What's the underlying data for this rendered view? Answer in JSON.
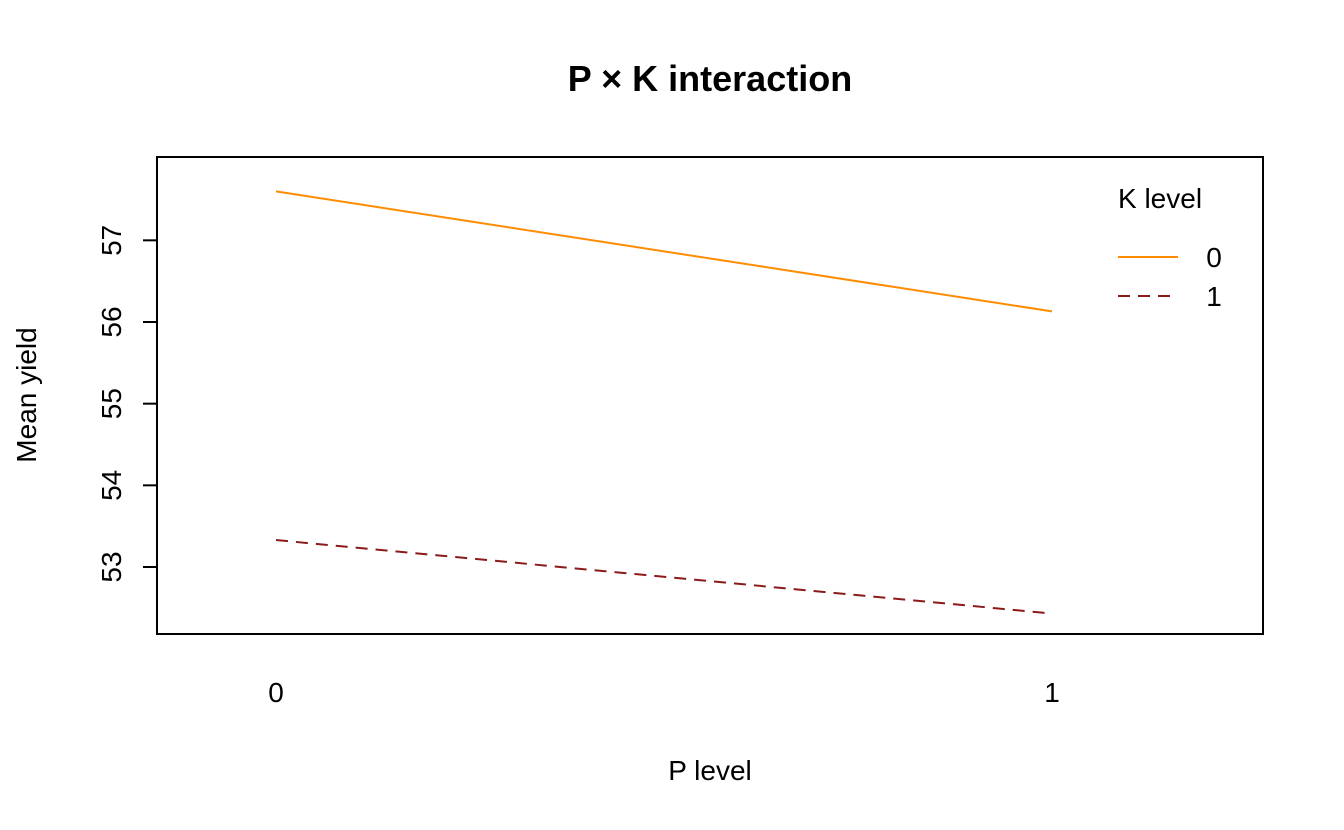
{
  "chart_data": {
    "type": "line",
    "title": "P × K interaction",
    "xlabel": "P level",
    "ylabel": "Mean yield",
    "categories": [
      "0",
      "1"
    ],
    "x_tick_labels": [
      "0",
      "1"
    ],
    "y_ticks": [
      53,
      54,
      55,
      56,
      57
    ],
    "y_tick_labels": [
      "53",
      "54",
      "55",
      "56",
      "57"
    ],
    "ylim": [
      52.4,
      57.8
    ],
    "grid": false,
    "legend": {
      "title": "K level",
      "position": "top-right",
      "entries": [
        "0",
        "1"
      ]
    },
    "series": [
      {
        "name": "0",
        "values": [
          57.6,
          56.13
        ],
        "color": "#FF8C00",
        "line_style": "solid"
      },
      {
        "name": "1",
        "values": [
          53.33,
          52.43
        ],
        "color": "#8B1A1A",
        "line_style": "dashed"
      }
    ]
  }
}
